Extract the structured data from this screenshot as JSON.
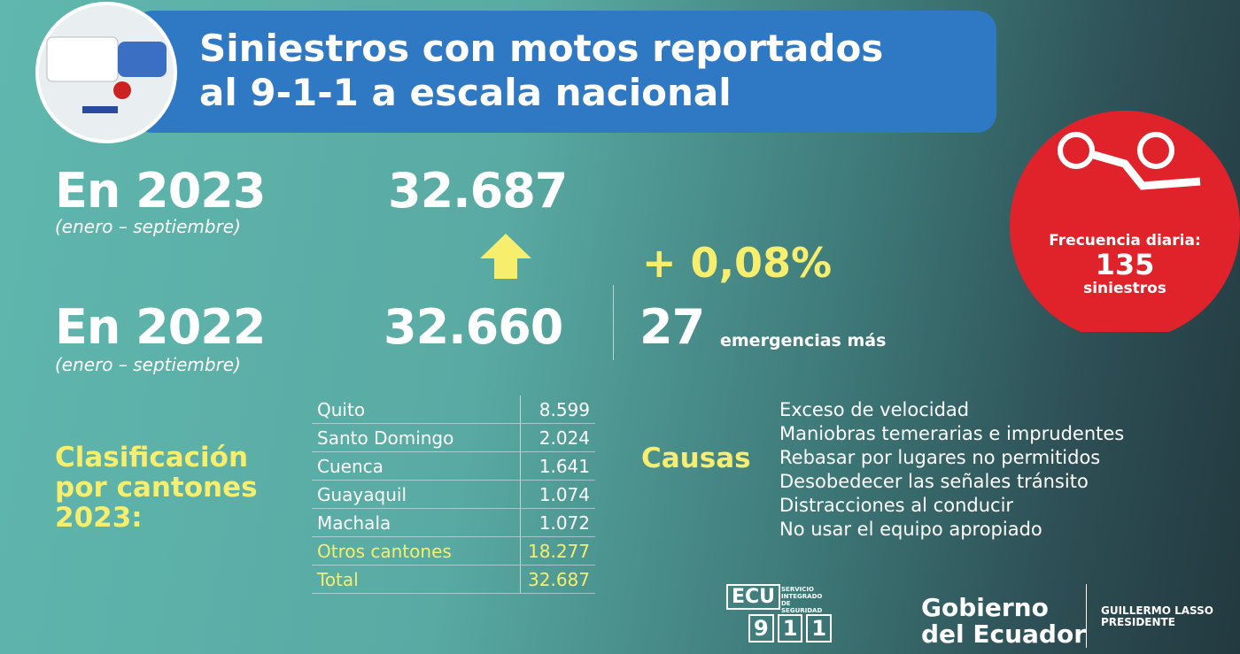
{
  "header": {
    "title_lines": [
      "Siniestros con motos reportados",
      "al 9-1-1 a escala nacional"
    ]
  },
  "comparison": {
    "current": {
      "label": "En 2023",
      "period": "(enero – septiembre)",
      "value": "32.687"
    },
    "previous": {
      "label": "En 2022",
      "period": "(enero – septiembre)",
      "value": "32.660"
    },
    "change": "+ 0,08%",
    "difference": {
      "value": "27",
      "text": "emergencias más"
    }
  },
  "frequency": {
    "label": "Frecuencia diaria:",
    "value": "135",
    "unit": "siniestros"
  },
  "classification": {
    "title_lines": [
      "Clasificación",
      "por cantones",
      "2023:"
    ],
    "rows": [
      [
        "Quito",
        "8.599"
      ],
      [
        "Santo Domingo",
        "2.024"
      ],
      [
        "Cuenca",
        "1.641"
      ],
      [
        "Guayaquil",
        "1.074"
      ],
      [
        "Machala",
        "1.072"
      ],
      [
        "Otros cantones",
        "18.277"
      ],
      [
        "Total",
        "32.687"
      ]
    ]
  },
  "causes": {
    "title": "Causas",
    "items": [
      "Exceso de velocidad",
      "Maniobras temerarias e imprudentes",
      "Rebasar por lugares no permitidos",
      "Desobedecer las señales tránsito",
      "Distracciones al conducir",
      "No usar el equipo apropiado"
    ]
  },
  "footer": {
    "ecu": "ECU",
    "ecu_digits": [
      "9",
      "1",
      "1"
    ],
    "ecu_service": [
      "SERVICIO",
      "INTEGRADO",
      "DE SEGURIDAD"
    ],
    "gov": [
      "Gobierno",
      "del Ecuador"
    ],
    "president": [
      "GUILLERMO LASSO",
      "PRESIDENTE"
    ]
  }
}
